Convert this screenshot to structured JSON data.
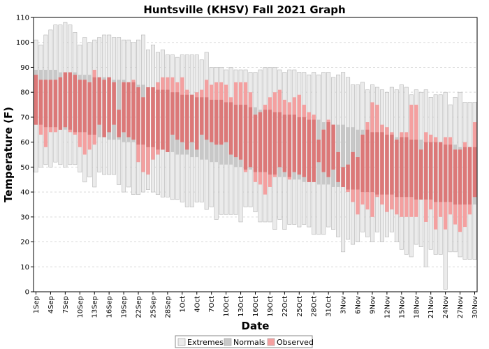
{
  "chart_data": {
    "type": "bar",
    "title": "Huntsville (KHSV) Fall 2021 Graph",
    "xlabel": "Date",
    "ylabel": "Temperature (F)",
    "ylim": [
      0,
      110
    ],
    "yticks": [
      0,
      10,
      20,
      30,
      40,
      50,
      60,
      70,
      80,
      90,
      100,
      110
    ],
    "grid": true,
    "legend_position": "bottom-center",
    "legend": [
      "Extremes",
      "Normals",
      "Observed"
    ],
    "colors": {
      "extremes_fill": "#ebebeb",
      "extremes_edge": "#b4b4b4",
      "normals_fill": "#c8c8c8",
      "observed_fill": "#f4a0a0",
      "overlap_fill": "#dc7878",
      "grid": "#d9d9d9"
    },
    "x_tick_labels": [
      "1Sep",
      "4Sep",
      "7Sep",
      "10Sep",
      "13Sep",
      "16Sep",
      "19Sep",
      "22Sep",
      "25Sep",
      "28Sep",
      "1Oct",
      "4Oct",
      "7Oct",
      "10Oct",
      "13Oct",
      "16Oct",
      "19Oct",
      "22Oct",
      "25Oct",
      "28Oct",
      "31Oct",
      "3Nov",
      "6Nov",
      "9Nov",
      "12Nov",
      "15Nov",
      "18Nov",
      "21Nov",
      "24Nov",
      "27Nov",
      "30Nov"
    ],
    "days": [
      "1Sep",
      "2Sep",
      "3Sep",
      "4Sep",
      "5Sep",
      "6Sep",
      "7Sep",
      "8Sep",
      "9Sep",
      "10Sep",
      "11Sep",
      "12Sep",
      "13Sep",
      "14Sep",
      "15Sep",
      "16Sep",
      "17Sep",
      "18Sep",
      "19Sep",
      "20Sep",
      "21Sep",
      "22Sep",
      "23Sep",
      "24Sep",
      "25Sep",
      "26Sep",
      "27Sep",
      "28Sep",
      "29Sep",
      "30Sep",
      "1Oct",
      "2Oct",
      "3Oct",
      "4Oct",
      "5Oct",
      "6Oct",
      "7Oct",
      "8Oct",
      "9Oct",
      "10Oct",
      "11Oct",
      "12Oct",
      "13Oct",
      "14Oct",
      "15Oct",
      "16Oct",
      "17Oct",
      "18Oct",
      "19Oct",
      "20Oct",
      "21Oct",
      "22Oct",
      "23Oct",
      "24Oct",
      "25Oct",
      "26Oct",
      "27Oct",
      "28Oct",
      "29Oct",
      "30Oct",
      "31Oct",
      "1Nov",
      "2Nov",
      "3Nov",
      "4Nov",
      "5Nov",
      "6Nov",
      "7Nov",
      "8Nov",
      "9Nov",
      "10Nov",
      "11Nov",
      "12Nov",
      "13Nov",
      "14Nov",
      "15Nov",
      "16Nov",
      "17Nov",
      "18Nov",
      "19Nov",
      "20Nov",
      "21Nov",
      "22Nov",
      "23Nov",
      "24Nov",
      "25Nov",
      "26Nov",
      "27Nov",
      "28Nov",
      "29Nov",
      "30Nov"
    ],
    "series": [
      {
        "name": "Extremes",
        "record_high": [
          101,
          99,
          103,
          105,
          107,
          107,
          108,
          107,
          104,
          99,
          102,
          100,
          101,
          102,
          103,
          103,
          102,
          102,
          101,
          101,
          100,
          101,
          103,
          97,
          99,
          96,
          97,
          95,
          95,
          94,
          95,
          95,
          95,
          95,
          93,
          96,
          90,
          90,
          90,
          89,
          90,
          89,
          89,
          89,
          88,
          88,
          89,
          90,
          90,
          90,
          89,
          88,
          89,
          89,
          88,
          88,
          87,
          88,
          87,
          88,
          88,
          86,
          87,
          88,
          86,
          83,
          83,
          84,
          81,
          83,
          82,
          81,
          80,
          82,
          81,
          83,
          82,
          79,
          81,
          80,
          81,
          78,
          79,
          79,
          80,
          75,
          78,
          80,
          76,
          76,
          76
        ],
        "record_low": [
          48,
          50,
          51,
          50,
          52,
          51,
          50,
          51,
          51,
          48,
          44,
          46,
          42,
          48,
          47,
          47,
          47,
          43,
          40,
          42,
          39,
          39,
          40,
          41,
          40,
          39,
          38,
          38,
          37,
          37,
          36,
          34,
          34,
          36,
          36,
          33,
          34,
          29,
          31,
          31,
          31,
          31,
          28,
          34,
          34,
          32,
          28,
          28,
          28,
          25,
          29,
          25,
          27,
          27,
          26,
          27,
          26,
          23,
          23,
          23,
          26,
          25,
          22,
          16,
          21,
          19,
          20,
          24,
          22,
          20,
          24,
          20,
          22,
          24,
          20,
          17,
          15,
          14,
          19,
          18,
          10,
          17,
          15,
          15,
          1,
          16,
          16,
          14,
          13,
          13,
          13
        ]
      },
      {
        "name": "Normals",
        "normal_high": [
          89,
          89,
          89,
          89,
          89,
          88,
          88,
          88,
          88,
          87,
          87,
          87,
          86,
          86,
          86,
          86,
          85,
          85,
          85,
          84,
          84,
          83,
          83,
          82,
          82,
          81,
          81,
          81,
          80,
          80,
          79,
          79,
          79,
          78,
          78,
          78,
          77,
          77,
          77,
          76,
          76,
          75,
          75,
          75,
          74,
          74,
          73,
          73,
          73,
          72,
          72,
          71,
          71,
          71,
          70,
          70,
          69,
          69,
          69,
          68,
          68,
          67,
          67,
          67,
          66,
          66,
          65,
          65,
          65,
          64,
          64,
          64,
          63,
          63,
          62,
          62,
          62,
          61,
          61,
          61,
          60,
          60,
          60,
          60,
          59,
          59,
          59,
          58,
          58,
          58,
          58
        ],
        "normal_low": [
          67,
          67,
          66,
          66,
          66,
          65,
          65,
          65,
          64,
          64,
          64,
          63,
          63,
          62,
          62,
          61,
          61,
          61,
          60,
          60,
          60,
          59,
          59,
          58,
          58,
          57,
          57,
          56,
          56,
          55,
          55,
          55,
          54,
          54,
          53,
          53,
          52,
          52,
          51,
          51,
          51,
          50,
          50,
          49,
          49,
          48,
          48,
          48,
          47,
          47,
          46,
          46,
          46,
          45,
          45,
          44,
          44,
          44,
          43,
          43,
          43,
          42,
          42,
          42,
          41,
          41,
          41,
          40,
          40,
          40,
          39,
          39,
          39,
          39,
          38,
          38,
          38,
          38,
          37,
          37,
          37,
          37,
          36,
          36,
          36,
          36,
          35,
          35,
          35,
          35,
          35
        ]
      },
      {
        "name": "Observed",
        "high": [
          87,
          85,
          85,
          85,
          85,
          86,
          88,
          88,
          87,
          85,
          85,
          84,
          89,
          86,
          85,
          86,
          84,
          73,
          84,
          84,
          85,
          82,
          78,
          82,
          82,
          84,
          86,
          86,
          86,
          84,
          86,
          81,
          79,
          80,
          81,
          85,
          83,
          84,
          84,
          83,
          78,
          84,
          84,
          84,
          80,
          71,
          72,
          75,
          78,
          80,
          81,
          77,
          76,
          78,
          79,
          75,
          72,
          71,
          61,
          65,
          69,
          67,
          56,
          50,
          51,
          56,
          54,
          63,
          68,
          76,
          75,
          67,
          66,
          64,
          61,
          64,
          64,
          75,
          75,
          57,
          64,
          63,
          62,
          60,
          62,
          62,
          57,
          57,
          60,
          58,
          68
        ],
        "low": [
          67,
          63,
          58,
          64,
          64,
          65,
          66,
          64,
          63,
          58,
          55,
          57,
          59,
          67,
          62,
          64,
          67,
          62,
          64,
          62,
          61,
          52,
          48,
          47,
          53,
          55,
          57,
          56,
          63,
          61,
          60,
          57,
          60,
          57,
          63,
          61,
          60,
          59,
          59,
          60,
          55,
          54,
          53,
          48,
          50,
          44,
          43,
          39,
          42,
          46,
          50,
          48,
          45,
          48,
          47,
          46,
          44,
          44,
          52,
          48,
          46,
          49,
          44,
          42,
          40,
          36,
          31,
          35,
          33,
          30,
          38,
          35,
          32,
          33,
          31,
          30,
          30,
          30,
          30,
          37,
          28,
          33,
          25,
          30,
          25,
          31,
          27,
          24,
          26,
          31,
          38
        ]
      }
    ]
  }
}
